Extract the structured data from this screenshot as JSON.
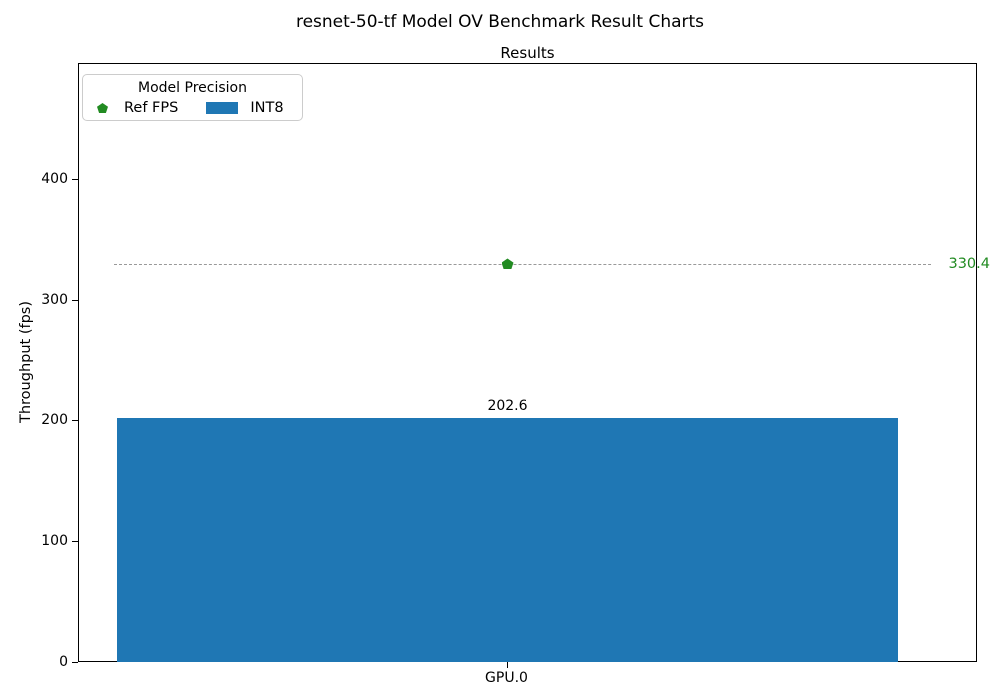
{
  "figure": {
    "title": "resnet-50-tf Model OV Benchmark Result Charts",
    "axes_title": "Results",
    "ylabel": "Throughput (fps)"
  },
  "legend": {
    "title": "Model Precision",
    "items": [
      {
        "label": "Ref FPS",
        "marker": "pentagon",
        "color": "#228b22"
      },
      {
        "label": "INT8",
        "marker": "square",
        "color": "#1f77b4"
      }
    ]
  },
  "chart_data": {
    "type": "bar",
    "title": "Results",
    "suptitle": "resnet-50-tf Model OV Benchmark Result Charts",
    "xlabel": "",
    "ylabel": "Throughput (fps)",
    "categories": [
      "GPU.0"
    ],
    "series": [
      {
        "name": "INT8",
        "values": [
          202.6
        ],
        "color": "#1f77b4"
      }
    ],
    "ref_line": {
      "name": "Ref FPS",
      "value": 330.4,
      "marker_color": "#228b22",
      "label_color": "#228b22",
      "line_color": "#999999",
      "style": "dashed"
    },
    "ylim": [
      0,
      496
    ],
    "yticks": [
      0,
      100,
      200,
      300,
      400
    ],
    "grid": false,
    "legend_title": "Model Precision",
    "legend_position": "upper left"
  }
}
